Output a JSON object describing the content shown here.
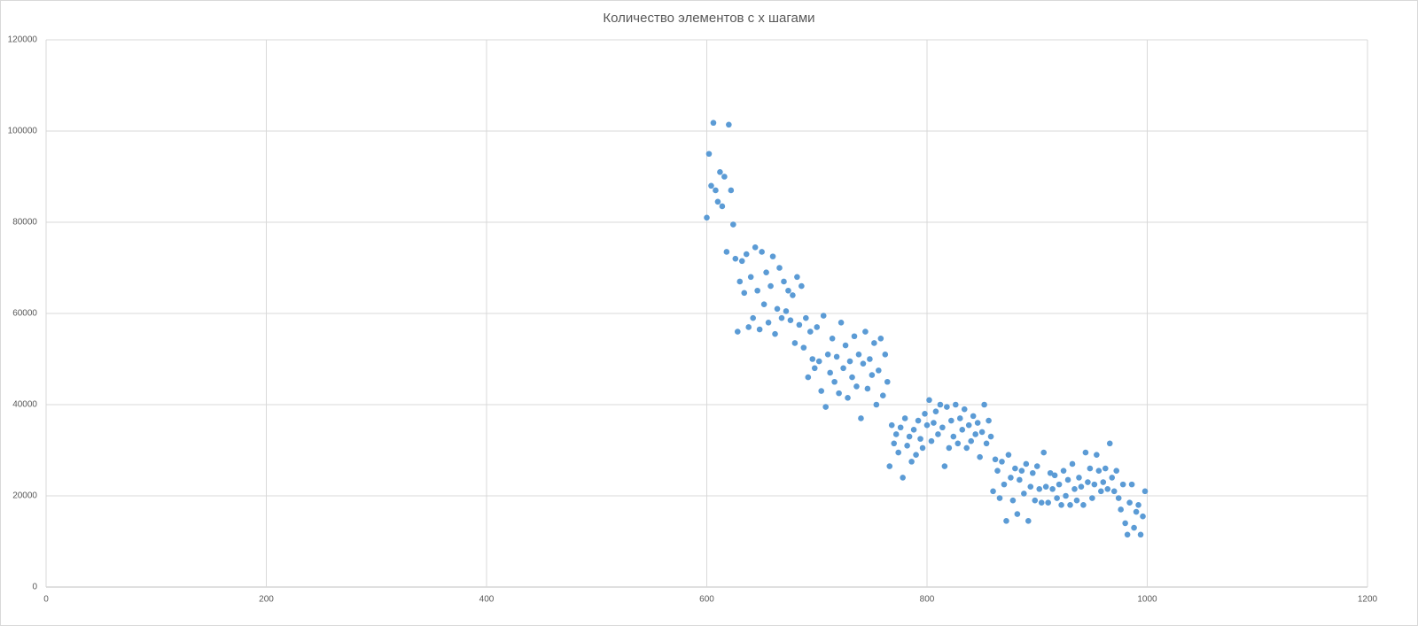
{
  "chart_data": {
    "type": "scatter",
    "title": "Количество элементов с x шагами",
    "xlim": [
      0,
      1200
    ],
    "xticks": [
      0,
      200,
      400,
      600,
      800,
      1000,
      1200
    ],
    "ylim": [
      0,
      120000
    ],
    "yticks": [
      0,
      20000,
      40000,
      60000,
      80000,
      100000,
      120000
    ],
    "grid": true,
    "series": [
      {
        "color": "#5b9bd5",
        "x": [
          600,
          602,
          604,
          606,
          608,
          610,
          612,
          614,
          616,
          618,
          620,
          622,
          624,
          626,
          628,
          630,
          632,
          634,
          636,
          638,
          640,
          642,
          644,
          646,
          648,
          650,
          652,
          654,
          656,
          658,
          660,
          662,
          664,
          666,
          668,
          670,
          672,
          674,
          676,
          678,
          680,
          682,
          684,
          686,
          688,
          690,
          692,
          694,
          696,
          698,
          700,
          702,
          704,
          706,
          708,
          710,
          712,
          714,
          716,
          718,
          720,
          722,
          724,
          726,
          728,
          730,
          732,
          734,
          736,
          738,
          740,
          742,
          744,
          746,
          748,
          750,
          752,
          754,
          756,
          758,
          760,
          762,
          764,
          766,
          768,
          770,
          772,
          774,
          776,
          778,
          780,
          782,
          784,
          786,
          788,
          790,
          792,
          794,
          796,
          798,
          800,
          802,
          804,
          806,
          808,
          810,
          812,
          814,
          816,
          818,
          820,
          822,
          824,
          826,
          828,
          830,
          832,
          834,
          836,
          838,
          840,
          842,
          844,
          846,
          848,
          850,
          852,
          854,
          856,
          858,
          860,
          862,
          864,
          866,
          868,
          870,
          872,
          874,
          876,
          878,
          880,
          882,
          884,
          886,
          888,
          890,
          892,
          894,
          896,
          898,
          900,
          902,
          904,
          906,
          908,
          910,
          912,
          914,
          916,
          918,
          920,
          922,
          924,
          926,
          928,
          930,
          932,
          934,
          936,
          938,
          940,
          942,
          944,
          946,
          948,
          950,
          952,
          954,
          956,
          958,
          960,
          962,
          964,
          966,
          968,
          970,
          972,
          974,
          976,
          978,
          980,
          982,
          984,
          986,
          988,
          990,
          992,
          994,
          996,
          998
        ],
        "values": [
          81000,
          95000,
          88000,
          101800,
          87000,
          84500,
          91000,
          83500,
          90000,
          73500,
          101400,
          87000,
          79500,
          72000,
          56000,
          67000,
          71500,
          64500,
          73000,
          57000,
          68000,
          59000,
          74500,
          65000,
          56500,
          73500,
          62000,
          69000,
          58000,
          66000,
          72500,
          55500,
          61000,
          70000,
          59000,
          67000,
          60500,
          65000,
          58500,
          64000,
          53500,
          68000,
          57500,
          66000,
          52500,
          59000,
          46000,
          56000,
          50000,
          48000,
          57000,
          49500,
          43000,
          59500,
          39500,
          51000,
          47000,
          54500,
          45000,
          50500,
          42500,
          58000,
          48000,
          53000,
          41500,
          49500,
          46000,
          55000,
          44000,
          51000,
          37000,
          49000,
          56000,
          43500,
          50000,
          46500,
          53500,
          40000,
          47500,
          54500,
          42000,
          51000,
          45000,
          26500,
          35500,
          31500,
          33500,
          29500,
          35000,
          24000,
          37000,
          31000,
          33000,
          27500,
          34500,
          29000,
          36500,
          32500,
          30500,
          38000,
          35500,
          41000,
          32000,
          36000,
          38500,
          33500,
          40000,
          35000,
          26500,
          39500,
          30500,
          36500,
          33000,
          40000,
          31500,
          37000,
          34500,
          39000,
          30500,
          35500,
          32000,
          37500,
          33500,
          36000,
          28500,
          34000,
          40000,
          31500,
          36500,
          33000,
          21000,
          28000,
          25500,
          19500,
          27500,
          22500,
          14500,
          29000,
          24000,
          19000,
          26000,
          16000,
          23500,
          25500,
          20500,
          27000,
          14500,
          22000,
          25000,
          19000,
          26500,
          21500,
          18500,
          29500,
          22000,
          18500,
          25000,
          21500,
          24500,
          19500,
          22500,
          18000,
          25500,
          20000,
          23500,
          18000,
          27000,
          21500,
          19000,
          24000,
          22000,
          18000,
          29500,
          23000,
          26000,
          19500,
          22500,
          29000,
          25500,
          21000,
          23000,
          26000,
          21500,
          31500,
          24000,
          21000,
          25500,
          19500,
          17000,
          22500,
          14000,
          11500,
          18500,
          22500,
          13000,
          16500,
          18000,
          11500,
          15500,
          21000
        ]
      }
    ]
  }
}
